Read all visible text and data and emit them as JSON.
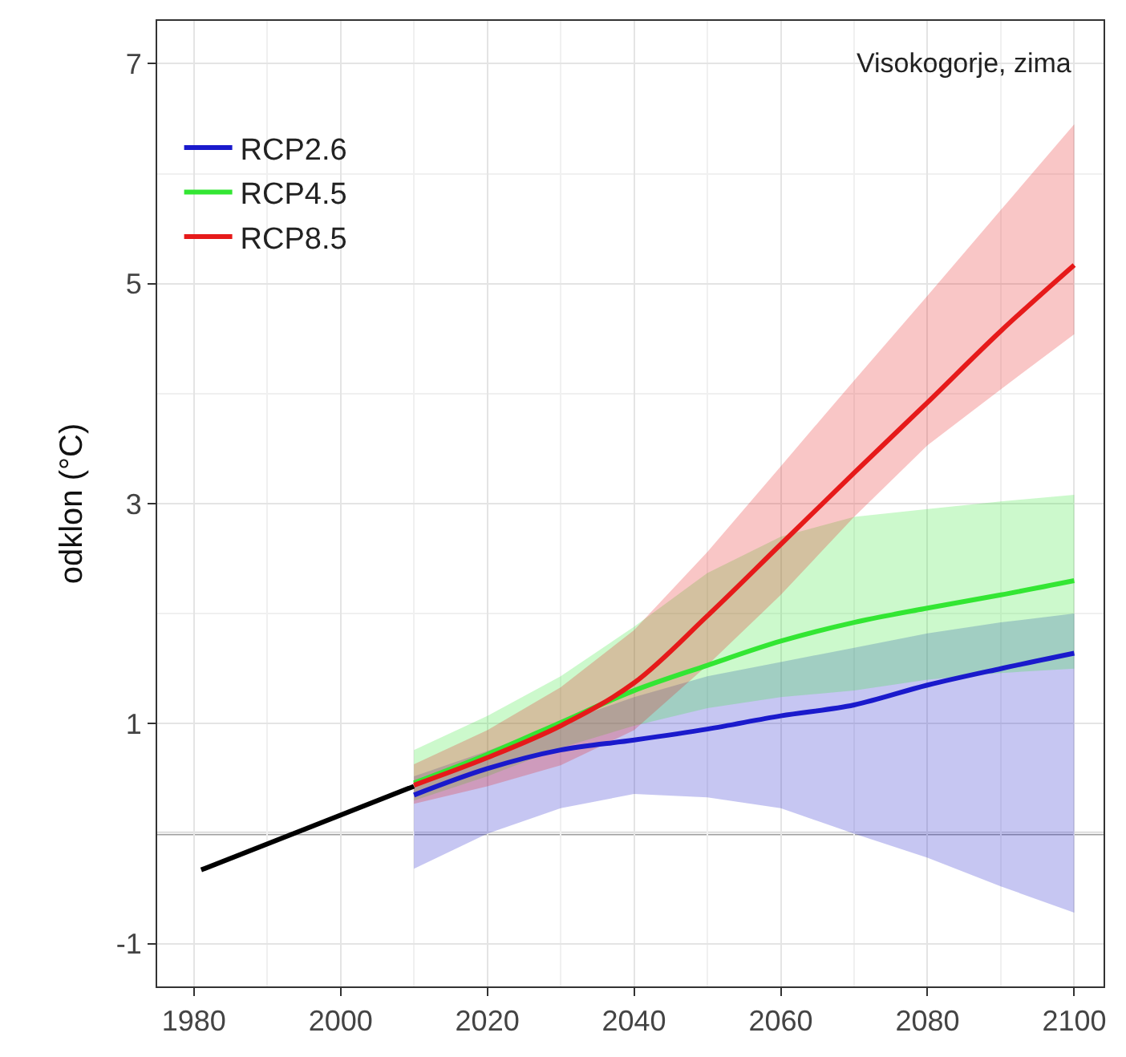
{
  "chart_data": {
    "type": "line",
    "ylabel": "odklon (°C)",
    "annotations": [
      "Visokogorje, zima"
    ],
    "xlim": [
      1975,
      2104
    ],
    "ylim": [
      -1.39,
      7.39
    ],
    "xticks": [
      1980,
      2000,
      2020,
      2040,
      2060,
      2080,
      2100
    ],
    "yticks": [
      -1,
      1,
      3,
      5,
      7
    ],
    "grid": true,
    "legend": "top left",
    "line_style": "solid",
    "marker": "none",
    "ref_lines": [
      {
        "axis": "y",
        "value": 0,
        "color": "#a0a0a0"
      }
    ],
    "series": [
      {
        "color": "#000000",
        "x": [
          1981,
          2010
        ],
        "values": [
          -0.33,
          0.43
        ]
      },
      {
        "name": "RCP2.6",
        "color": "#1a1acc",
        "x": [
          2010,
          2020,
          2030,
          2040,
          2050,
          2060,
          2070,
          2080,
          2090,
          2100
        ],
        "values": [
          0.35,
          0.59,
          0.76,
          0.85,
          0.95,
          1.07,
          1.17,
          1.35,
          1.5,
          1.64
        ],
        "lower": [
          -0.32,
          0.0,
          0.23,
          0.36,
          0.33,
          0.23,
          0.0,
          -0.22,
          -0.48,
          -0.72
        ],
        "upper": [
          0.52,
          0.75,
          1.01,
          1.24,
          1.43,
          1.56,
          1.69,
          1.82,
          1.92,
          2.0
        ]
      },
      {
        "name": "RCP4.5",
        "color": "#33e633",
        "x": [
          2010,
          2020,
          2030,
          2040,
          2050,
          2060,
          2070,
          2080,
          2090,
          2100
        ],
        "values": [
          0.46,
          0.72,
          1.01,
          1.3,
          1.53,
          1.75,
          1.92,
          2.05,
          2.17,
          2.3
        ],
        "lower": [
          0.3,
          0.52,
          0.78,
          0.98,
          1.14,
          1.24,
          1.3,
          1.4,
          1.46,
          1.5
        ],
        "upper": [
          0.76,
          1.07,
          1.43,
          1.88,
          2.37,
          2.7,
          2.88,
          2.95,
          3.02,
          3.08
        ]
      },
      {
        "name": "RCP8.5",
        "color": "#e61a1a",
        "x": [
          2010,
          2020,
          2030,
          2040,
          2050,
          2060,
          2070,
          2080,
          2090,
          2100
        ],
        "values": [
          0.44,
          0.69,
          0.98,
          1.37,
          1.98,
          2.63,
          3.28,
          3.92,
          4.57,
          5.17
        ],
        "lower": [
          0.27,
          0.43,
          0.62,
          0.94,
          1.53,
          2.17,
          2.88,
          3.53,
          4.04,
          4.54
        ],
        "upper": [
          0.63,
          0.94,
          1.33,
          1.85,
          2.56,
          3.34,
          4.12,
          4.89,
          5.67,
          6.45
        ]
      }
    ]
  }
}
